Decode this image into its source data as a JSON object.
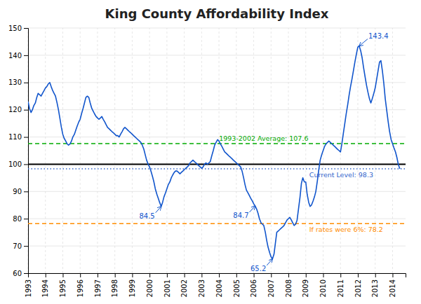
{
  "chart_data": {
    "type": "line",
    "title": "King County Affordability Index",
    "color": "#1155cc",
    "grid": true,
    "xlim": [
      1993.0,
      2014.75
    ],
    "xticks": [
      1993,
      1994,
      1995,
      1996,
      1997,
      1998,
      1999,
      2000,
      2001,
      2002,
      2003,
      2004,
      2005,
      2006,
      2007,
      2008,
      2009,
      2010,
      2011,
      2012,
      2013,
      2014
    ],
    "ylim": [
      60,
      150
    ],
    "yticks": [
      60,
      70,
      80,
      90,
      100,
      110,
      120,
      130,
      140,
      150
    ],
    "x": [
      1993.0,
      1993.08,
      1993.17,
      1993.25,
      1993.33,
      1993.42,
      1993.5,
      1993.58,
      1993.67,
      1993.75,
      1993.83,
      1993.92,
      1994.0,
      1994.08,
      1994.17,
      1994.25,
      1994.33,
      1994.42,
      1994.5,
      1994.58,
      1994.67,
      1994.75,
      1994.83,
      1994.92,
      1995.0,
      1995.08,
      1995.17,
      1995.25,
      1995.33,
      1995.42,
      1995.5,
      1995.58,
      1995.67,
      1995.75,
      1995.83,
      1995.92,
      1996.0,
      1996.08,
      1996.17,
      1996.25,
      1996.33,
      1996.42,
      1996.5,
      1996.58,
      1996.67,
      1996.75,
      1996.83,
      1996.92,
      1997.0,
      1997.08,
      1997.17,
      1997.25,
      1997.33,
      1997.42,
      1997.5,
      1997.58,
      1997.67,
      1997.75,
      1997.83,
      1997.92,
      1998.0,
      1998.08,
      1998.17,
      1998.25,
      1998.33,
      1998.42,
      1998.5,
      1998.58,
      1998.67,
      1998.75,
      1998.83,
      1998.92,
      1999.0,
      1999.08,
      1999.17,
      1999.25,
      1999.33,
      1999.42,
      1999.5,
      1999.58,
      1999.67,
      1999.75,
      1999.83,
      1999.92,
      2000.0,
      2000.08,
      2000.17,
      2000.25,
      2000.33,
      2000.42,
      2000.5,
      2000.58,
      2000.67,
      2000.75,
      2000.83,
      2000.92,
      2001.0,
      2001.08,
      2001.17,
      2001.25,
      2001.33,
      2001.42,
      2001.5,
      2001.58,
      2001.67,
      2001.75,
      2001.83,
      2001.92,
      2002.0,
      2002.08,
      2002.17,
      2002.25,
      2002.33,
      2002.42,
      2002.5,
      2002.58,
      2002.67,
      2002.75,
      2002.83,
      2002.92,
      2003.0,
      2003.08,
      2003.17,
      2003.25,
      2003.33,
      2003.42,
      2003.5,
      2003.58,
      2003.67,
      2003.75,
      2003.83,
      2003.92,
      2004.0,
      2004.08,
      2004.17,
      2004.25,
      2004.33,
      2004.42,
      2004.5,
      2004.58,
      2004.67,
      2004.75,
      2004.83,
      2004.92,
      2005.0,
      2005.08,
      2005.17,
      2005.25,
      2005.33,
      2005.42,
      2005.5,
      2005.58,
      2005.67,
      2005.75,
      2005.83,
      2005.92,
      2006.0,
      2006.08,
      2006.17,
      2006.25,
      2006.33,
      2006.42,
      2006.5,
      2006.58,
      2006.67,
      2006.75,
      2006.83,
      2006.92,
      2007.0,
      2007.08,
      2007.17,
      2007.25,
      2007.33,
      2007.42,
      2007.5,
      2007.58,
      2007.67,
      2007.75,
      2007.83,
      2007.92,
      2008.0,
      2008.08,
      2008.17,
      2008.25,
      2008.33,
      2008.42,
      2008.5,
      2008.58,
      2008.67,
      2008.75,
      2008.83,
      2008.92,
      2009.0,
      2009.08,
      2009.17,
      2009.25,
      2009.33,
      2009.42,
      2009.5,
      2009.58,
      2009.67,
      2009.75,
      2009.83,
      2009.92,
      2010.0,
      2010.08,
      2010.17,
      2010.25,
      2010.33,
      2010.42,
      2010.5,
      2010.58,
      2010.67,
      2010.75,
      2010.83,
      2010.92,
      2011.0,
      2011.08,
      2011.17,
      2011.25,
      2011.33,
      2011.42,
      2011.5,
      2011.58,
      2011.67,
      2011.75,
      2011.83,
      2011.92,
      2012.0,
      2012.08,
      2012.17,
      2012.25,
      2012.33,
      2012.42,
      2012.5,
      2012.58,
      2012.67,
      2012.75,
      2012.83,
      2012.92,
      2013.0,
      2013.08,
      2013.17,
      2013.25,
      2013.33,
      2013.42,
      2013.5,
      2013.58,
      2013.67,
      2013.75,
      2013.83,
      2013.92,
      2014.0,
      2014.08,
      2014.17,
      2014.25,
      2014.33,
      2014.42
    ],
    "values": [
      123.0,
      120.5,
      119.0,
      120.0,
      121.5,
      122.5,
      124.5,
      126.0,
      125.5,
      125.0,
      126.0,
      127.0,
      128.0,
      128.5,
      129.5,
      130.0,
      128.5,
      127.0,
      126.0,
      125.0,
      122.5,
      120.0,
      117.0,
      113.5,
      111.0,
      109.5,
      108.5,
      107.5,
      107.0,
      107.5,
      108.5,
      110.0,
      111.0,
      112.5,
      114.0,
      115.5,
      116.5,
      118.5,
      120.5,
      122.5,
      124.5,
      125.0,
      124.5,
      122.5,
      120.5,
      119.5,
      118.5,
      117.5,
      117.0,
      116.5,
      117.0,
      117.5,
      116.5,
      115.5,
      114.5,
      113.5,
      113.0,
      112.5,
      112.0,
      111.5,
      111.0,
      110.5,
      110.5,
      110.0,
      111.0,
      112.0,
      113.0,
      113.5,
      113.0,
      112.5,
      112.0,
      111.5,
      111.0,
      110.5,
      110.0,
      109.5,
      109.0,
      108.5,
      108.0,
      107.0,
      105.5,
      103.5,
      101.5,
      100.0,
      99.0,
      97.5,
      95.5,
      93.5,
      91.0,
      89.0,
      87.5,
      86.0,
      84.5,
      86.0,
      88.0,
      89.5,
      91.0,
      92.5,
      93.5,
      95.0,
      96.0,
      97.0,
      97.5,
      97.5,
      97.0,
      96.5,
      97.0,
      97.5,
      98.0,
      98.5,
      99.0,
      99.5,
      100.5,
      101.0,
      101.5,
      101.0,
      100.5,
      100.0,
      99.5,
      99.0,
      98.5,
      99.0,
      100.0,
      100.5,
      100.0,
      100.5,
      101.0,
      103.0,
      105.0,
      107.0,
      108.0,
      109.0,
      108.5,
      107.5,
      106.5,
      105.5,
      104.5,
      104.0,
      103.5,
      103.0,
      102.5,
      102.0,
      101.5,
      101.0,
      100.5,
      100.0,
      99.5,
      99.0,
      97.5,
      95.0,
      92.5,
      90.5,
      89.5,
      88.5,
      87.5,
      86.5,
      85.5,
      84.7,
      83.5,
      82.0,
      80.0,
      78.5,
      78.0,
      77.5,
      75.0,
      72.0,
      69.5,
      67.5,
      66.0,
      65.2,
      67.0,
      71.0,
      75.0,
      75.5,
      76.0,
      76.5,
      77.0,
      77.5,
      78.5,
      79.5,
      80.0,
      80.5,
      79.5,
      78.5,
      77.5,
      78.0,
      79.5,
      83.5,
      88.0,
      93.0,
      95.0,
      93.5,
      93.5,
      89.0,
      86.0,
      84.5,
      85.0,
      86.5,
      88.0,
      90.0,
      94.0,
      98.0,
      101.5,
      103.5,
      105.0,
      106.5,
      107.5,
      108.0,
      108.5,
      108.0,
      107.5,
      107.0,
      106.5,
      106.0,
      105.5,
      105.0,
      104.5,
      107.5,
      111.5,
      115.0,
      118.5,
      122.0,
      125.5,
      128.5,
      131.5,
      134.5,
      137.5,
      140.5,
      143.0,
      143.4,
      141.5,
      139.0,
      135.5,
      132.0,
      129.0,
      126.5,
      124.0,
      122.5,
      124.0,
      126.0,
      128.0,
      131.0,
      134.5,
      137.5,
      138.0,
      134.0,
      129.5,
      124.0,
      119.5,
      115.5,
      112.0,
      109.0,
      107.5,
      106.0,
      104.5,
      102.5,
      100.0,
      98.3
    ],
    "reference_lines": [
      {
        "value": 78.2,
        "label": "If rates were 6%: 78.2",
        "color": "#ff8c00",
        "line_style": "dashed"
      },
      {
        "value": 107.6,
        "label": "1993-2002 Average: 107.6",
        "color": "#00aa00",
        "line_style": "dashed"
      },
      {
        "value": 98.3,
        "label": "Current Level: 98.3",
        "color": "#3366cc",
        "line_style": "dotted"
      },
      {
        "value": 100,
        "color": "#000000",
        "line_style": "solid"
      }
    ],
    "annotations": [
      {
        "text": "143.4",
        "x": 2012.08,
        "y": 143.4
      },
      {
        "text": "84.5",
        "x": 2000.67,
        "y": 84.5
      },
      {
        "text": "84.7",
        "x": 2006.08,
        "y": 84.7
      },
      {
        "text": "65.2",
        "x": 2007.08,
        "y": 65.2
      }
    ]
  }
}
